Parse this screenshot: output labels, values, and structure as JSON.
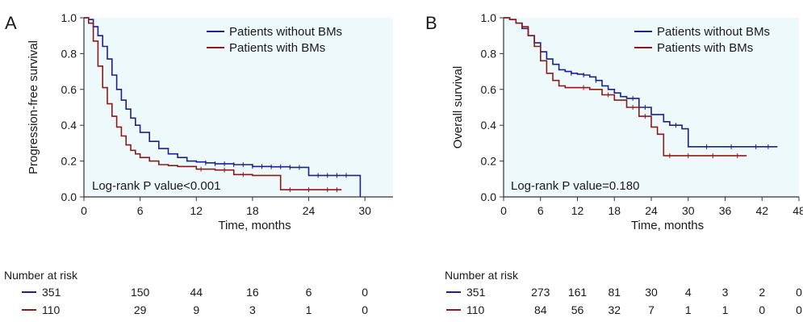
{
  "colors": {
    "without": "#1f1f8f",
    "with": "#8b1a1a",
    "panel_bg": "#eef9fb",
    "axis": "#333333"
  },
  "chart_data": [
    {
      "type": "line",
      "panel_label": "A",
      "xlabel": "Time, months",
      "ylabel": "Progression-free survival",
      "xlim": [
        0,
        33
      ],
      "ylim": [
        0,
        1
      ],
      "xticks": [
        0,
        6,
        12,
        18,
        24,
        30
      ],
      "yticks": [
        0,
        0.2,
        0.4,
        0.6,
        0.8,
        1.0
      ],
      "ytick_labels": [
        "0.0",
        "0.2",
        "0.4",
        "0.6",
        "0.8",
        "1.0"
      ],
      "legend": [
        "Patients without BMs",
        "Patients with BMs"
      ],
      "legend_position": "top-right",
      "annotation": "Log-rank P value<0.001",
      "series": [
        {
          "name": "Patients without BMs",
          "x": [
            0,
            0.5,
            1,
            1.5,
            2,
            2.5,
            3,
            3.5,
            4,
            4.5,
            5,
            5.5,
            6,
            7,
            8,
            9,
            10,
            11,
            12,
            13,
            14,
            16,
            18,
            20,
            22,
            24,
            26,
            28,
            29.5
          ],
          "y": [
            1.0,
            0.99,
            0.95,
            0.9,
            0.84,
            0.77,
            0.68,
            0.6,
            0.54,
            0.49,
            0.44,
            0.4,
            0.36,
            0.31,
            0.27,
            0.24,
            0.22,
            0.2,
            0.195,
            0.19,
            0.185,
            0.18,
            0.17,
            0.168,
            0.165,
            0.12,
            0.12,
            0.12,
            0.0
          ]
        },
        {
          "name": "Patients with BMs",
          "x": [
            0,
            0.5,
            1,
            1.5,
            2,
            2.5,
            3,
            3.5,
            4,
            4.5,
            5,
            5.5,
            6,
            7,
            8,
            9,
            10,
            12,
            14,
            16,
            18,
            20,
            21,
            24,
            27.5
          ],
          "y": [
            1.0,
            0.97,
            0.87,
            0.73,
            0.61,
            0.52,
            0.45,
            0.39,
            0.34,
            0.29,
            0.26,
            0.24,
            0.22,
            0.2,
            0.18,
            0.175,
            0.17,
            0.155,
            0.15,
            0.125,
            0.12,
            0.12,
            0.04,
            0.04,
            0.04
          ]
        }
      ],
      "censor_x": {
        "Patients without BMs": [
          13,
          14,
          15,
          16,
          17,
          18,
          19,
          20,
          21,
          22,
          23,
          25,
          26,
          27,
          28
        ],
        "Patients with BMs": [
          12.5,
          15,
          17,
          22,
          24,
          26,
          27
        ]
      },
      "risk_table": {
        "title": "Number at risk",
        "times": [
          0,
          6,
          12,
          18,
          24,
          30
        ],
        "rows": [
          {
            "series": "Patients without BMs",
            "label": "351",
            "values": [
              "351",
              "150",
              "44",
              "16",
              "6",
              "0"
            ]
          },
          {
            "series": "Patients with BMs",
            "label": "110",
            "values": [
              "110",
              "29",
              "9",
              "3",
              "1",
              "0"
            ]
          }
        ]
      }
    },
    {
      "type": "line",
      "panel_label": "B",
      "xlabel": "Time, months",
      "ylabel": "Overall survival",
      "xlim": [
        0,
        48
      ],
      "ylim": [
        0,
        1
      ],
      "xticks": [
        0,
        6,
        12,
        18,
        24,
        30,
        36,
        42,
        48
      ],
      "yticks": [
        0,
        0.2,
        0.4,
        0.6,
        0.8,
        1.0
      ],
      "ytick_labels": [
        "0.0",
        "0.2",
        "0.4",
        "0.6",
        "0.8",
        "1.0"
      ],
      "legend": [
        "Patients without BMs",
        "Patients with BMs"
      ],
      "legend_position": "top-right",
      "annotation": "Log-rank P value=0.180",
      "series": [
        {
          "name": "Patients without BMs",
          "x": [
            0,
            1,
            2,
            3,
            4,
            5,
            6,
            7,
            8,
            9,
            10,
            11,
            12,
            13,
            14,
            15,
            16,
            17,
            18,
            19,
            20,
            22,
            24,
            26,
            27,
            29,
            30,
            34,
            38,
            42,
            44.5
          ],
          "y": [
            1.0,
            0.99,
            0.97,
            0.94,
            0.9,
            0.86,
            0.81,
            0.77,
            0.74,
            0.71,
            0.7,
            0.69,
            0.685,
            0.68,
            0.67,
            0.65,
            0.62,
            0.6,
            0.58,
            0.56,
            0.55,
            0.5,
            0.46,
            0.42,
            0.4,
            0.38,
            0.28,
            0.28,
            0.28,
            0.28,
            0.28
          ]
        },
        {
          "name": "Patients with BMs",
          "x": [
            0,
            1,
            2,
            3,
            4,
            5,
            6,
            7,
            8,
            9,
            10,
            12,
            14,
            16,
            18,
            19,
            20,
            22,
            24,
            25,
            26,
            28,
            32,
            36,
            39.5
          ],
          "y": [
            1.0,
            0.99,
            0.97,
            0.95,
            0.9,
            0.84,
            0.76,
            0.69,
            0.65,
            0.62,
            0.61,
            0.61,
            0.6,
            0.57,
            0.54,
            0.54,
            0.5,
            0.45,
            0.39,
            0.35,
            0.23,
            0.23,
            0.23,
            0.23,
            0.23
          ]
        }
      ],
      "censor_x": {
        "Patients without BMs": [
          11,
          13,
          15,
          21,
          23,
          28,
          33,
          37,
          41,
          43
        ],
        "Patients with BMs": [
          13,
          17,
          21,
          23,
          27,
          30,
          34,
          38
        ]
      },
      "risk_table": {
        "title": "Number at risk",
        "times": [
          0,
          6,
          12,
          18,
          24,
          30,
          36,
          42,
          48
        ],
        "rows": [
          {
            "series": "Patients without BMs",
            "label": "351",
            "values": [
              "351",
              "273",
              "161",
              "81",
              "30",
              "4",
              "3",
              "2",
              "0"
            ]
          },
          {
            "series": "Patients with BMs",
            "label": "110",
            "values": [
              "110",
              "84",
              "56",
              "32",
              "7",
              "1",
              "1",
              "0",
              "0"
            ]
          }
        ]
      }
    }
  ]
}
